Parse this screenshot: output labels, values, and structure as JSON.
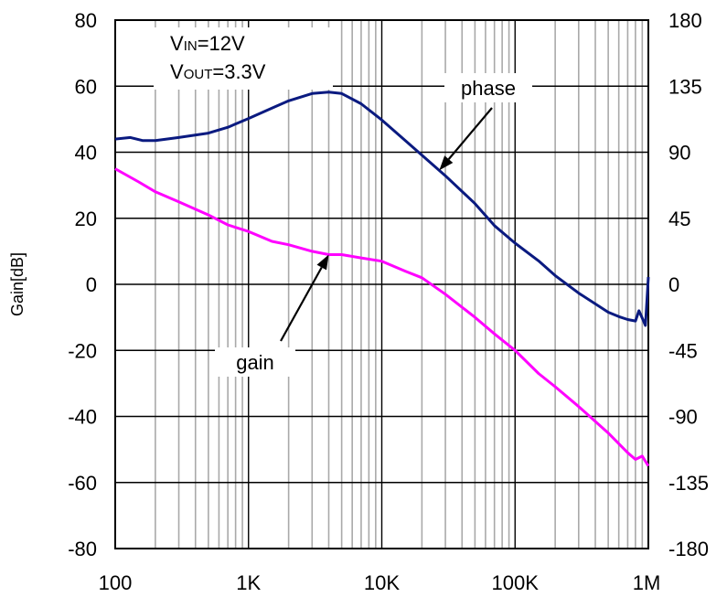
{
  "chart_data": {
    "type": "line",
    "xlabel": "",
    "ylabel": "Gain[dB]",
    "y2label": "",
    "xscale": "log",
    "xlim": [
      100,
      1000000
    ],
    "ylim": [
      -80,
      80
    ],
    "y2lim": [
      -180,
      180
    ],
    "grid": true,
    "x_ticks": [
      {
        "value": 100,
        "label": "100"
      },
      {
        "value": 1000,
        "label": "1K"
      },
      {
        "value": 10000,
        "label": "10K"
      },
      {
        "value": 100000,
        "label": "100K"
      },
      {
        "value": 1000000,
        "label": "1M"
      }
    ],
    "y_ticks": [
      80,
      60,
      40,
      20,
      0,
      -20,
      -40,
      -60,
      -80
    ],
    "y2_ticks": [
      180,
      135,
      90,
      45,
      0,
      -45,
      -90,
      -135,
      -180
    ],
    "conditions": {
      "vin": {
        "main": "V",
        "sub": "IN",
        "value": "=12V"
      },
      "vout": {
        "main": "V",
        "sub": "OUT",
        "value": "=3.3V"
      }
    },
    "series": [
      {
        "name": "phase",
        "axis": "right",
        "color": "#0a1a80",
        "x": [
          100,
          130,
          160,
          200,
          300,
          500,
          700,
          1000,
          1500,
          2000,
          3000,
          4000,
          5000,
          7000,
          10000,
          15000,
          20000,
          30000,
          50000,
          70000,
          100000,
          150000,
          200000,
          300000,
          500000,
          600000,
          700000,
          800000,
          850000,
          900000,
          950000,
          1000000
        ],
        "y": [
          99,
          100,
          98,
          98,
          100,
          103,
          107,
          113,
          120,
          125,
          130,
          131,
          130,
          123,
          112,
          98,
          88,
          74,
          55,
          40,
          28,
          16,
          6,
          -6,
          -19,
          -22,
          -24,
          -25,
          -18,
          -23,
          -28,
          5
        ]
      },
      {
        "name": "gain",
        "axis": "left",
        "color": "#ff00ff",
        "x": [
          100,
          150,
          200,
          300,
          500,
          700,
          1000,
          1500,
          2000,
          3000,
          4000,
          5000,
          7000,
          10000,
          15000,
          20000,
          30000,
          50000,
          70000,
          100000,
          150000,
          200000,
          300000,
          500000,
          700000,
          800000,
          900000,
          1000000
        ],
        "y": [
          35,
          31,
          28,
          25,
          21,
          18,
          16,
          13,
          12,
          10,
          9,
          9,
          8,
          7,
          4,
          2,
          -3,
          -10,
          -15,
          -20,
          -27,
          -31,
          -37,
          -45,
          -51,
          -53,
          -52,
          -55
        ]
      }
    ],
    "annotations": [
      {
        "text": "phase",
        "series": "phase",
        "point_x": 27000
      },
      {
        "text": "gain",
        "series": "gain",
        "point_x": 4000
      }
    ]
  }
}
